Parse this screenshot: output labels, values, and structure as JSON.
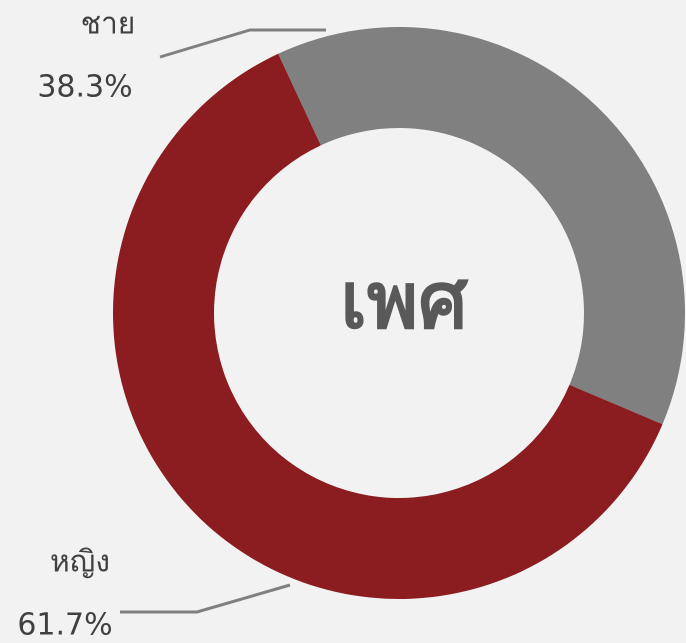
{
  "chart_data": {
    "type": "donut",
    "title": "เพศ",
    "categories": [
      "ชาย",
      "หญิง"
    ],
    "values": [
      38.3,
      61.7
    ],
    "value_labels": [
      "38.3%",
      "61.7%"
    ],
    "colors": [
      "#808080",
      "#8b1c1f"
    ]
  }
}
